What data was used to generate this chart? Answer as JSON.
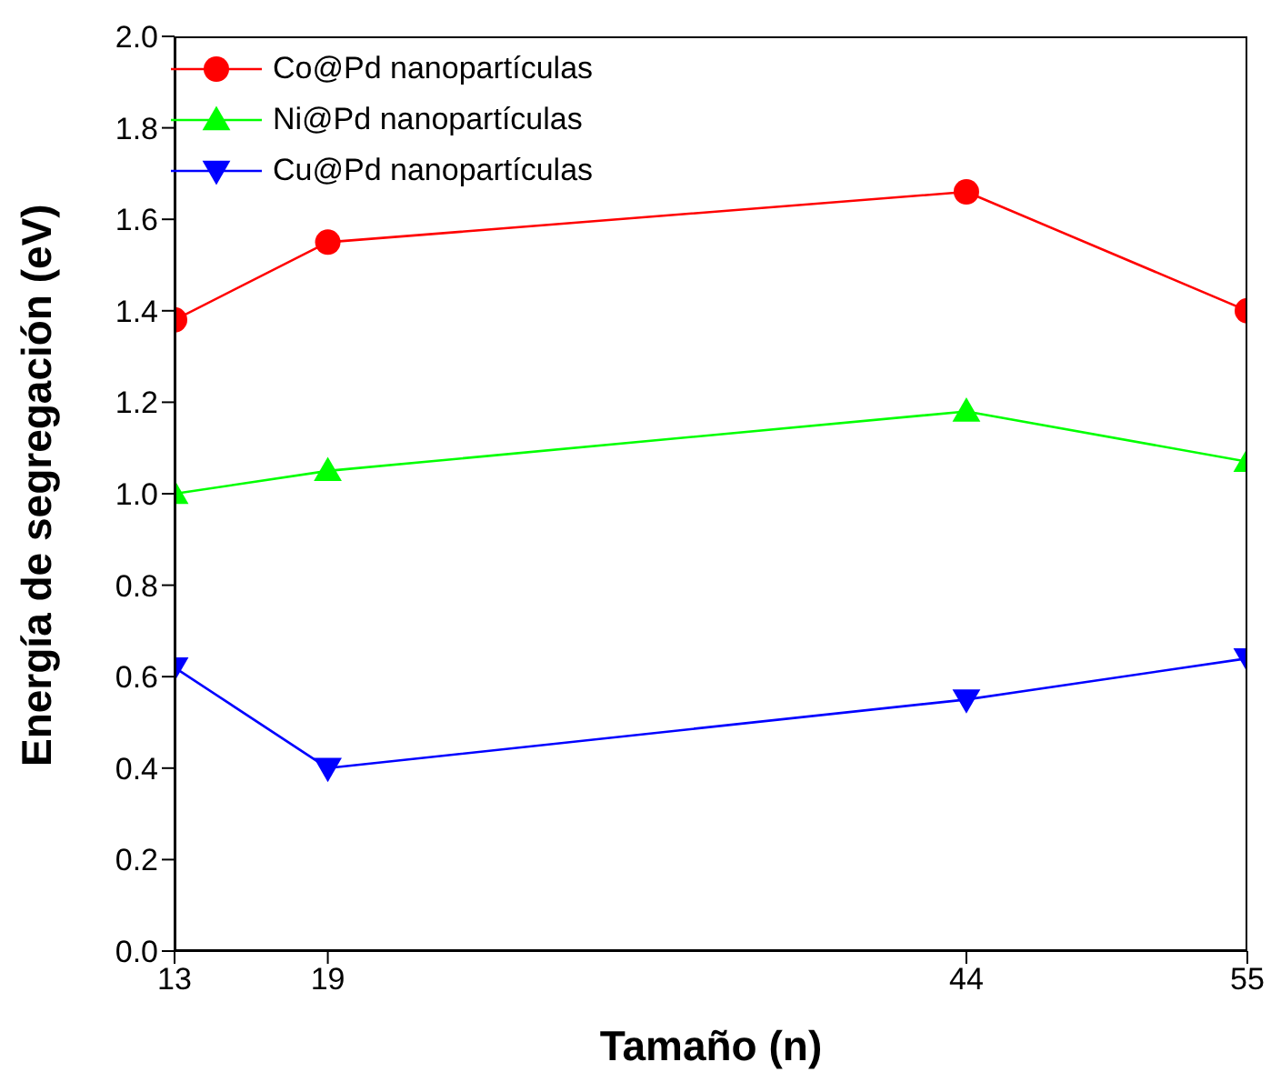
{
  "chart_data": {
    "type": "line",
    "xlabel": "Tamaño (n)",
    "ylabel": "Energía de segregación (eV)",
    "x": [
      13,
      19,
      44,
      55
    ],
    "series": [
      {
        "name": "Co@Pd nanopartículas",
        "color": "#ff0000",
        "marker": "circle",
        "values": [
          1.38,
          1.55,
          1.66,
          1.4
        ]
      },
      {
        "name": "Ni@Pd nanopartículas",
        "color": "#00ff00",
        "marker": "triangle",
        "values": [
          1.0,
          1.05,
          1.18,
          1.07
        ]
      },
      {
        "name": "Cu@Pd nanopartículas",
        "color": "#0000ff",
        "marker": "triangle-down",
        "values": [
          0.62,
          0.4,
          0.55,
          0.64
        ]
      }
    ],
    "xlim": [
      13,
      55
    ],
    "xticks": [
      13,
      19,
      44,
      55
    ],
    "ylim": [
      0,
      2.0
    ],
    "yticks": [
      {
        "value": 0,
        "label": "0.0"
      },
      {
        "value": 0.2,
        "label": "0.2"
      },
      {
        "value": 0.4,
        "label": "0.4"
      },
      {
        "value": 0.6,
        "label": "0.6"
      },
      {
        "value": 0.8,
        "label": "0.8"
      },
      {
        "value": 1.0,
        "label": "1.0"
      },
      {
        "value": 1.2,
        "label": "1.2"
      },
      {
        "value": 1.4,
        "label": "1.4"
      },
      {
        "value": 1.6,
        "label": "1.6"
      },
      {
        "value": 1.8,
        "label": "1.8"
      },
      {
        "value": 2.0,
        "label": "2.0"
      }
    ],
    "grid": false,
    "legend": "top left",
    "line_style": "solid"
  }
}
